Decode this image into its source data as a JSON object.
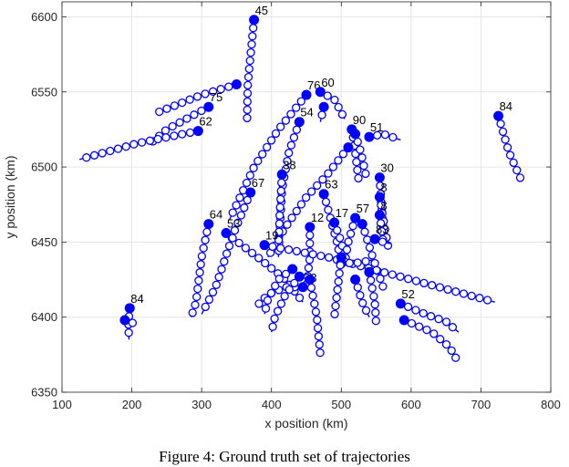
{
  "chart_data": {
    "type": "line",
    "xlabel": "x position (km)",
    "ylabel": "y position (km)",
    "xlim": [
      100,
      800
    ],
    "ylim": [
      6350,
      6610
    ],
    "xticks": [
      100,
      200,
      300,
      400,
      500,
      600,
      700,
      800
    ],
    "yticks": [
      6350,
      6400,
      6450,
      6500,
      6550,
      6600
    ],
    "grid": true,
    "marker_color": "#0000FF",
    "caption": "Figure 4: Ground truth set of trajectories",
    "tracks": [
      {
        "label": "45",
        "start": [
          375,
          6598
        ],
        "path": [
          [
            375,
            6598
          ],
          [
            366,
            6555
          ],
          [
            365,
            6530
          ]
        ]
      },
      {
        "label": "",
        "start": [
          350,
          6555
        ],
        "path": [
          [
            350,
            6555
          ],
          [
            300,
            6548
          ],
          [
            235,
            6536
          ]
        ]
      },
      {
        "label": "75",
        "start": [
          310,
          6540
        ],
        "path": [
          [
            310,
            6540
          ],
          [
            250,
            6525
          ],
          [
            225,
            6515
          ]
        ]
      },
      {
        "label": "62",
        "start": [
          295,
          6524
        ],
        "path": [
          [
            295,
            6524
          ],
          [
            210,
            6516
          ],
          [
            125,
            6505
          ]
        ]
      },
      {
        "label": "84",
        "start": [
          725,
          6534
        ],
        "path": [
          [
            725,
            6534
          ],
          [
            740,
            6510
          ],
          [
            757,
            6492
          ]
        ]
      },
      {
        "label": "76",
        "start": [
          450,
          6548
        ],
        "path": [
          [
            450,
            6548
          ],
          [
            410,
            6525
          ],
          [
            375,
            6500
          ],
          [
            340,
            6465
          ]
        ]
      },
      {
        "label": "60",
        "start": [
          470,
          6550
        ],
        "path": [
          [
            470,
            6550
          ],
          [
            490,
            6545
          ],
          [
            505,
            6532
          ]
        ]
      },
      {
        "label": "",
        "start": [
          475,
          6540
        ],
        "path": [
          [
            475,
            6540
          ],
          [
            470,
            6530
          ]
        ]
      },
      {
        "label": "54",
        "start": [
          440,
          6530
        ],
        "path": [
          [
            440,
            6530
          ],
          [
            425,
            6510
          ],
          [
            415,
            6485
          ],
          [
            412,
            6460
          ],
          [
            410,
            6440
          ]
        ]
      },
      {
        "label": "90",
        "start": [
          515,
          6525
        ],
        "path": [
          [
            515,
            6525
          ],
          [
            520,
            6510
          ],
          [
            525,
            6490
          ]
        ]
      },
      {
        "label": "",
        "start": [
          520,
          6522
        ],
        "path": [
          [
            520,
            6522
          ],
          [
            528,
            6510
          ],
          [
            535,
            6495
          ]
        ]
      },
      {
        "label": "",
        "start": [
          510,
          6513
        ],
        "path": [
          [
            510,
            6513
          ],
          [
            480,
            6495
          ],
          [
            450,
            6480
          ],
          [
            420,
            6460
          ],
          [
            395,
            6440
          ]
        ]
      },
      {
        "label": "51",
        "start": [
          540,
          6520
        ],
        "path": [
          [
            540,
            6520
          ],
          [
            560,
            6522
          ],
          [
            585,
            6518
          ]
        ]
      },
      {
        "label": "38",
        "start": [
          415,
          6495
        ],
        "path": [
          [
            415,
            6495
          ],
          [
            412,
            6470
          ],
          [
            410,
            6448
          ]
        ]
      },
      {
        "label": "30",
        "start": [
          555,
          6493
        ],
        "path": [
          [
            555,
            6493
          ],
          [
            558,
            6470
          ],
          [
            562,
            6450
          ]
        ]
      },
      {
        "label": "67",
        "start": [
          370,
          6483
        ],
        "path": [
          [
            370,
            6483
          ],
          [
            345,
            6455
          ],
          [
            320,
            6420
          ],
          [
            300,
            6402
          ]
        ]
      },
      {
        "label": "63",
        "start": [
          475,
          6482
        ],
        "path": [
          [
            475,
            6482
          ],
          [
            485,
            6465
          ],
          [
            495,
            6448
          ],
          [
            500,
            6435
          ]
        ]
      },
      {
        "label": "8",
        "start": [
          555,
          6480
        ],
        "path": [
          [
            555,
            6480
          ],
          [
            562,
            6460
          ],
          [
            568,
            6445
          ]
        ]
      },
      {
        "label": "8",
        "start": [
          555,
          6468
        ],
        "path": [
          [
            555,
            6468
          ],
          [
            560,
            6450
          ]
        ]
      },
      {
        "label": "64",
        "start": [
          310,
          6462
        ],
        "path": [
          [
            310,
            6462
          ],
          [
            300,
            6440
          ],
          [
            292,
            6410
          ],
          [
            285,
            6400
          ]
        ]
      },
      {
        "label": "53",
        "start": [
          335,
          6456
        ],
        "path": [
          [
            335,
            6456
          ],
          [
            380,
            6440
          ],
          [
            420,
            6425
          ],
          [
            445,
            6410
          ]
        ]
      },
      {
        "label": "12",
        "start": [
          455,
          6460
        ],
        "path": [
          [
            455,
            6460
          ],
          [
            455,
            6440
          ],
          [
            450,
            6420
          ]
        ]
      },
      {
        "label": "17",
        "start": [
          490,
          6463
        ],
        "path": [
          [
            490,
            6463
          ],
          [
            500,
            6450
          ],
          [
            505,
            6440
          ]
        ]
      },
      {
        "label": "57",
        "start": [
          520,
          6466
        ],
        "path": [
          [
            520,
            6466
          ],
          [
            510,
            6450
          ],
          [
            505,
            6436
          ]
        ]
      },
      {
        "label": "",
        "start": [
          530,
          6462
        ],
        "path": [
          [
            530,
            6462
          ],
          [
            545,
            6440
          ],
          [
            560,
            6420
          ]
        ]
      },
      {
        "label": "83",
        "start": [
          548,
          6452
        ],
        "path": [
          [
            548,
            6452
          ],
          [
            560,
            6450
          ],
          [
            570,
            6449
          ]
        ]
      },
      {
        "label": "19",
        "start": [
          390,
          6448
        ],
        "path": [
          [
            390,
            6448
          ],
          [
            480,
            6440
          ],
          [
            560,
            6430
          ],
          [
            640,
            6420
          ],
          [
            720,
            6410
          ]
        ]
      },
      {
        "label": "",
        "start": [
          500,
          6436
        ],
        "path": [
          [
            500,
            6436
          ],
          [
            520,
            6436
          ],
          [
            545,
            6438
          ]
        ]
      },
      {
        "label": "33",
        "start": [
          445,
          6420
        ],
        "path": [
          [
            445,
            6420
          ],
          [
            420,
            6420
          ],
          [
            395,
            6415
          ],
          [
            380,
            6408
          ]
        ]
      },
      {
        "label": "",
        "start": [
          430,
          6432
        ],
        "path": [
          [
            430,
            6432
          ],
          [
            410,
            6425
          ],
          [
            395,
            6412
          ],
          [
            390,
            6402
          ]
        ]
      },
      {
        "label": "",
        "start": [
          440,
          6427
        ],
        "path": [
          [
            440,
            6427
          ],
          [
            420,
            6415
          ],
          [
            405,
            6400
          ],
          [
            400,
            6390
          ]
        ]
      },
      {
        "label": "",
        "start": [
          455,
          6425
        ],
        "path": [
          [
            455,
            6425
          ],
          [
            465,
            6400
          ],
          [
            470,
            6375
          ]
        ]
      },
      {
        "label": "",
        "start": [
          520,
          6425
        ],
        "path": [
          [
            520,
            6425
          ],
          [
            530,
            6410
          ],
          [
            540,
            6400
          ]
        ]
      },
      {
        "label": "",
        "start": [
          500,
          6440
        ],
        "path": [
          [
            500,
            6440
          ],
          [
            495,
            6420
          ],
          [
            490,
            6400
          ]
        ]
      },
      {
        "label": "",
        "start": [
          540,
          6430
        ],
        "path": [
          [
            540,
            6430
          ],
          [
            548,
            6410
          ],
          [
            550,
            6395
          ]
        ]
      },
      {
        "label": "84",
        "start": [
          197,
          6406
        ],
        "path": [
          [
            197,
            6406
          ],
          [
            195,
            6395
          ],
          [
            196,
            6385
          ]
        ]
      },
      {
        "label": "",
        "start": [
          190,
          6398
        ],
        "path": [
          [
            190,
            6398
          ],
          [
            202,
            6396
          ]
        ]
      },
      {
        "label": "52",
        "start": [
          585,
          6409
        ],
        "path": [
          [
            585,
            6409
          ],
          [
            620,
            6402
          ],
          [
            650,
            6397
          ],
          [
            668,
            6390
          ]
        ]
      },
      {
        "label": "",
        "start": [
          590,
          6398
        ],
        "path": [
          [
            590,
            6398
          ],
          [
            630,
            6390
          ],
          [
            655,
            6380
          ],
          [
            665,
            6372
          ]
        ]
      }
    ]
  }
}
